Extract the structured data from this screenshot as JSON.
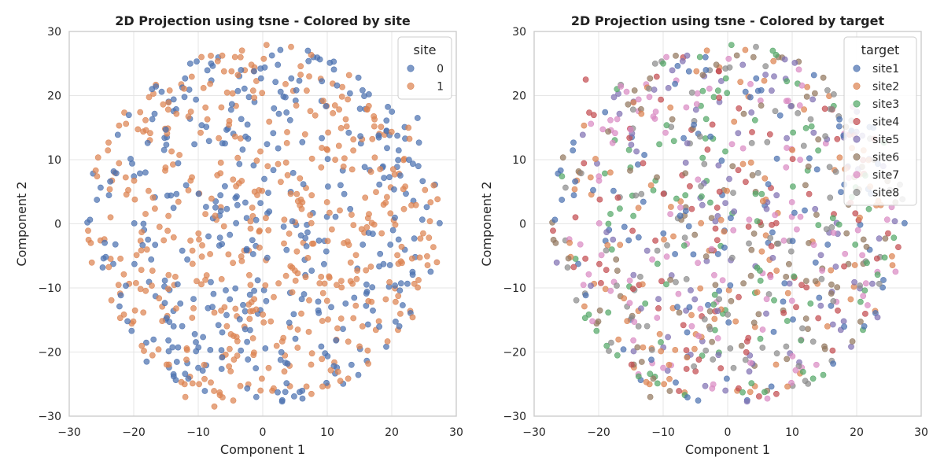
{
  "chart_data": [
    {
      "type": "scatter",
      "title": "2D Projection using tsne - Colored by site",
      "xlabel": "Component 1",
      "ylabel": "Component 2",
      "xlim": [
        -30,
        30
      ],
      "ylim": [
        -30,
        30
      ],
      "xticks": [
        "−30",
        "−20",
        "−10",
        "0",
        "10",
        "20",
        "30"
      ],
      "yticks": [
        "−30",
        "−20",
        "−10",
        "0",
        "10",
        "20",
        "30"
      ],
      "grid": true,
      "legend": {
        "title": "site",
        "placement": "top-right",
        "entries": [
          "0",
          "1"
        ]
      },
      "colors": [
        "#4c72b0",
        "#dd8452"
      ],
      "point_count": 850,
      "distribution": "roughly uniform disc of radius ~27 centered at the origin",
      "sample_points": [
        {
          "x": -8,
          "y": 25,
          "series": "0"
        },
        {
          "x": 7,
          "y": 27,
          "series": "0"
        },
        {
          "x": -27,
          "y": -2.5,
          "series": "1"
        },
        {
          "x": -1,
          "y": -27,
          "series": "0"
        },
        {
          "x": -12,
          "y": -27,
          "series": "1"
        },
        {
          "x": -7.5,
          "y": -28.5,
          "series": "1"
        },
        {
          "x": 26.5,
          "y": 6,
          "series": "1"
        },
        {
          "x": 24,
          "y": 16.5,
          "series": "0"
        },
        {
          "x": 27,
          "y": -6,
          "series": "1"
        },
        {
          "x": -18,
          "y": -21.5,
          "series": "0"
        }
      ]
    },
    {
      "type": "scatter",
      "title": "2D Projection using tsne - Colored by target",
      "xlabel": "Component 1",
      "ylabel": "Component 2",
      "xlim": [
        -30,
        30
      ],
      "ylim": [
        -30,
        30
      ],
      "xticks": [
        "−30",
        "−20",
        "−10",
        "0",
        "10",
        "20",
        "30"
      ],
      "yticks": [
        "−30",
        "−20",
        "−10",
        "0",
        "10",
        "20",
        "30"
      ],
      "grid": true,
      "legend": {
        "title": "target",
        "placement": "top-right",
        "entries": [
          "site1",
          "site2",
          "site3",
          "site4",
          "site5",
          "site6",
          "site7",
          "site8"
        ]
      },
      "colors": [
        "#4c72b0",
        "#dd8452",
        "#55a868",
        "#c44e52",
        "#8172b3",
        "#937860",
        "#da8bc3",
        "#8c8c8c"
      ],
      "point_count": 850,
      "distribution": "same embedding as the site panel, colored by target class",
      "sample_points": [
        {
          "x": -10,
          "y": 25,
          "series": "site3"
        },
        {
          "x": 4,
          "y": 26,
          "series": "site6"
        },
        {
          "x": -27,
          "y": -2.5,
          "series": "site6"
        },
        {
          "x": -12,
          "y": -27,
          "series": "site6"
        },
        {
          "x": 7,
          "y": 27,
          "series": "site3"
        },
        {
          "x": -22,
          "y": 22.5,
          "series": "site4"
        }
      ]
    }
  ]
}
